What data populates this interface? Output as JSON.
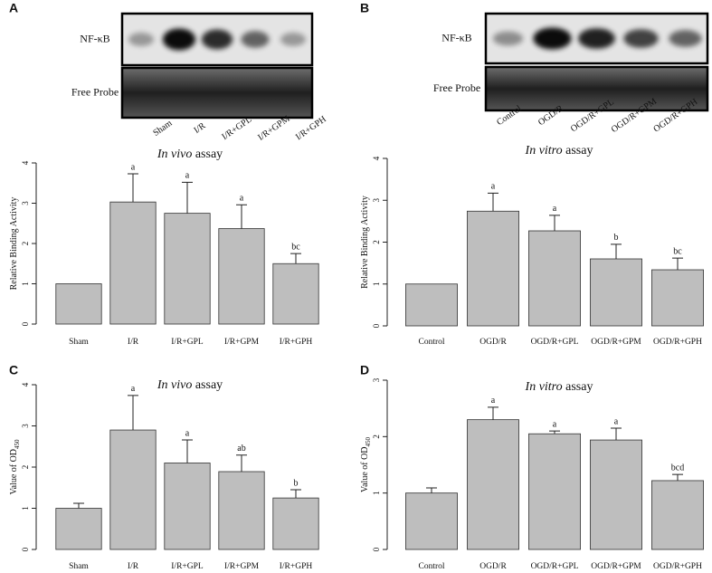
{
  "chart_data": [
    {
      "type": "bar",
      "panel": "A",
      "title": {
        "italic": "In vivo",
        "text": "assay"
      },
      "y_label": "Relative Binding Activity",
      "categories": [
        "Sham",
        "I/R",
        "I/R+GPL",
        "I/R+GPM",
        "I/R+GPH"
      ],
      "values": [
        1.0,
        3.03,
        2.75,
        2.37,
        1.5
      ],
      "errors": [
        null,
        0.7,
        0.77,
        0.59,
        0.25
      ],
      "annotations": [
        null,
        "a",
        "a",
        "a",
        "bc"
      ],
      "color": "#bebebe",
      "ylim": [
        0,
        4
      ],
      "yticks": [
        0,
        1,
        2,
        3,
        4
      ]
    },
    {
      "type": "bar",
      "panel": "B",
      "title": {
        "italic": "In vitro",
        "text": "assay"
      },
      "y_label": "Relative Binding Activity",
      "categories": [
        "Control",
        "OGD/R",
        "OGD/R+GPL",
        "OGD/R+GPM",
        "OGD/R+GPH"
      ],
      "values": [
        1.0,
        2.74,
        2.27,
        1.6,
        1.34
      ],
      "errors": [
        null,
        0.43,
        0.37,
        0.35,
        0.28
      ],
      "annotations": [
        null,
        "a",
        "a",
        "b",
        "bc"
      ],
      "color": "#bebebe",
      "ylim": [
        0,
        4
      ],
      "yticks": [
        0,
        1,
        2,
        3,
        4
      ]
    },
    {
      "type": "bar",
      "panel": "C",
      "title": {
        "italic": "In vivo",
        "text": "assay"
      },
      "y_label": "Value of OD",
      "y_label_sub": "450",
      "categories": [
        "Sham",
        "I/R",
        "I/R+GPL",
        "I/R+GPM",
        "I/R+GPH"
      ],
      "values": [
        1.0,
        2.9,
        2.1,
        1.89,
        1.25
      ],
      "errors": [
        0.12,
        0.84,
        0.56,
        0.4,
        0.2
      ],
      "annotations": [
        null,
        "a",
        "a",
        "ab",
        "b"
      ],
      "color": "#bebebe",
      "ylim": [
        0,
        4
      ],
      "yticks": [
        0,
        1,
        2,
        3,
        4
      ]
    },
    {
      "type": "bar",
      "panel": "D",
      "title": {
        "italic": "In vitro",
        "text": "assay"
      },
      "y_label": "Value of OD",
      "y_label_sub": "450",
      "categories": [
        "Control",
        "OGD/R",
        "OGD/R+GPL",
        "OGD/R+GPM",
        "OGD/R+GPH"
      ],
      "values": [
        1.0,
        2.3,
        2.05,
        1.94,
        1.22
      ],
      "errors": [
        0.09,
        0.22,
        0.05,
        0.21,
        0.11
      ],
      "annotations": [
        null,
        "a",
        "a",
        "a",
        "bcd"
      ],
      "color": "#bebebe",
      "ylim": [
        0,
        3
      ],
      "yticks": [
        0,
        1,
        2,
        3
      ]
    }
  ],
  "blots": [
    {
      "rows": [
        "NF-κB",
        "Free Probe"
      ],
      "lanes": [
        "Sham",
        "I/R",
        "I/R+GPL",
        "I/R+GPM",
        "I/R+GPH"
      ]
    },
    {
      "rows": [
        "NF-κB",
        "Free Probe"
      ],
      "lanes": [
        "Control",
        "OGD/R",
        "OGD/R+GPL",
        "OGD/R+GPM",
        "OGD/R+GPH"
      ]
    }
  ]
}
